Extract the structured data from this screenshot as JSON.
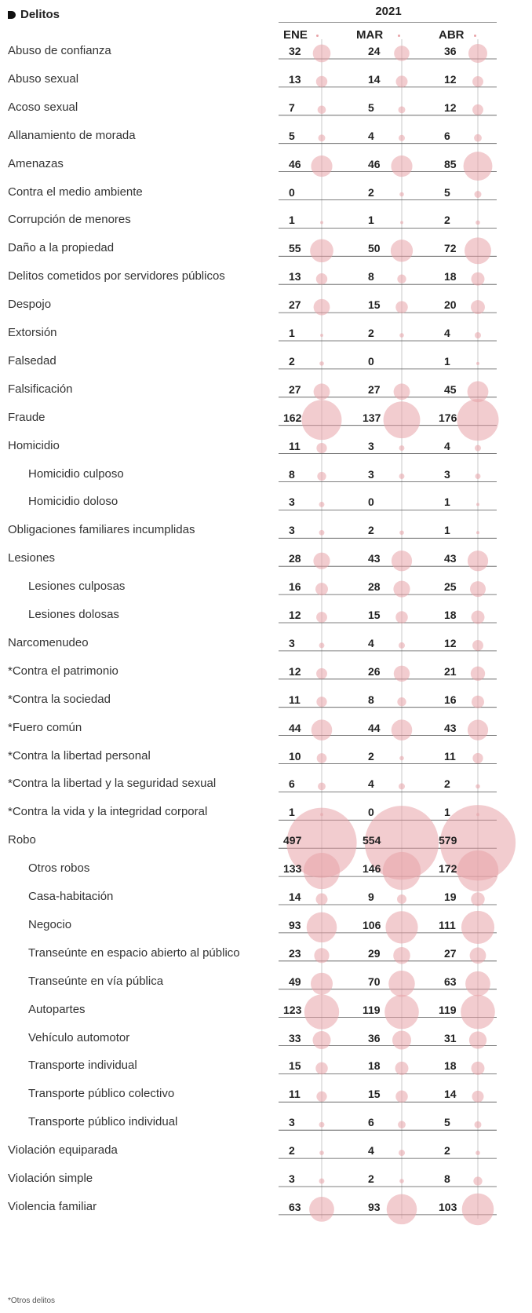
{
  "legend": {
    "label": "Delitos"
  },
  "chart_data": {
    "type": "table",
    "year": "2021",
    "columns": [
      "ENE",
      "MAR",
      "ABR"
    ],
    "rows": [
      {
        "label": "Abuso de confianza",
        "indent": 0,
        "values": [
          32,
          24,
          36
        ]
      },
      {
        "label": "Abuso sexual",
        "indent": 0,
        "values": [
          13,
          14,
          12
        ]
      },
      {
        "label": "Acoso sexual",
        "indent": 0,
        "values": [
          7,
          5,
          12
        ]
      },
      {
        "label": "Allanamiento de morada",
        "indent": 0,
        "values": [
          5,
          4,
          6
        ]
      },
      {
        "label": "Amenazas",
        "indent": 0,
        "values": [
          46,
          46,
          85
        ]
      },
      {
        "label": "Contra el medio ambiente",
        "indent": 0,
        "values": [
          0,
          2,
          5
        ]
      },
      {
        "label": "Corrupción de menores",
        "indent": 0,
        "values": [
          1,
          1,
          2
        ]
      },
      {
        "label": "Daño a la propiedad",
        "indent": 0,
        "values": [
          55,
          50,
          72
        ]
      },
      {
        "label": "Delitos cometidos por servidores públicos",
        "indent": 0,
        "values": [
          13,
          8,
          18
        ]
      },
      {
        "label": "Despojo",
        "indent": 0,
        "values": [
          27,
          15,
          20
        ]
      },
      {
        "label": "Extorsión",
        "indent": 0,
        "values": [
          1,
          2,
          4
        ]
      },
      {
        "label": "Falsedad",
        "indent": 0,
        "values": [
          2,
          0,
          1
        ]
      },
      {
        "label": "Falsificación",
        "indent": 0,
        "values": [
          27,
          27,
          45
        ]
      },
      {
        "label": "Fraude",
        "indent": 0,
        "values": [
          162,
          137,
          176
        ]
      },
      {
        "label": "Homicidio",
        "indent": 0,
        "values": [
          11,
          3,
          4
        ]
      },
      {
        "label": "Homicidio culposo",
        "indent": 1,
        "values": [
          8,
          3,
          3
        ]
      },
      {
        "label": "Homicidio doloso",
        "indent": 1,
        "values": [
          3,
          0,
          1
        ]
      },
      {
        "label": "Obligaciones familiares incumplidas",
        "indent": 0,
        "values": [
          3,
          2,
          1
        ]
      },
      {
        "label": "Lesiones",
        "indent": 0,
        "values": [
          28,
          43,
          43
        ]
      },
      {
        "label": "Lesiones culposas",
        "indent": 1,
        "values": [
          16,
          28,
          25
        ]
      },
      {
        "label": "Lesiones dolosas",
        "indent": 1,
        "values": [
          12,
          15,
          18
        ]
      },
      {
        "label": "Narcomenudeo",
        "indent": 0,
        "values": [
          3,
          4,
          12
        ]
      },
      {
        "label": "*Contra el patrimonio",
        "indent": 0,
        "values": [
          12,
          26,
          21
        ]
      },
      {
        "label": "*Contra la sociedad",
        "indent": 0,
        "values": [
          11,
          8,
          16
        ]
      },
      {
        "label": "*Fuero común",
        "indent": 0,
        "values": [
          44,
          44,
          43
        ]
      },
      {
        "label": "*Contra la libertad personal",
        "indent": 0,
        "values": [
          10,
          2,
          11
        ]
      },
      {
        "label": "*Contra la libertad y la seguridad sexual",
        "indent": 0,
        "values": [
          6,
          4,
          2
        ]
      },
      {
        "label": "*Contra la vida y la integridad corporal",
        "indent": 0,
        "values": [
          1,
          0,
          1
        ]
      },
      {
        "label": "Robo",
        "indent": 0,
        "values": [
          497,
          554,
          579
        ]
      },
      {
        "label": "Otros robos",
        "indent": 1,
        "values": [
          133,
          146,
          172
        ]
      },
      {
        "label": "Casa-habitación",
        "indent": 1,
        "values": [
          14,
          9,
          19
        ]
      },
      {
        "label": "Negocio",
        "indent": 1,
        "values": [
          93,
          106,
          111
        ]
      },
      {
        "label": "Transeúnte en espacio abierto al público",
        "indent": 1,
        "values": [
          23,
          29,
          27
        ]
      },
      {
        "label": "Transeúnte en vía pública",
        "indent": 1,
        "values": [
          49,
          70,
          63
        ]
      },
      {
        "label": "Autopartes",
        "indent": 1,
        "values": [
          123,
          119,
          119
        ]
      },
      {
        "label": "Vehículo automotor",
        "indent": 1,
        "values": [
          33,
          36,
          31
        ]
      },
      {
        "label": "Transporte individual",
        "indent": 1,
        "values": [
          15,
          18,
          18
        ]
      },
      {
        "label": "Transporte público colectivo",
        "indent": 1,
        "values": [
          11,
          15,
          14
        ]
      },
      {
        "label": "Transporte público individual",
        "indent": 1,
        "values": [
          3,
          6,
          5
        ]
      },
      {
        "label": "Violación equiparada",
        "indent": 0,
        "values": [
          2,
          4,
          2
        ]
      },
      {
        "label": "Violación simple",
        "indent": 0,
        "values": [
          3,
          2,
          8
        ]
      },
      {
        "label": "Violencia familiar",
        "indent": 0,
        "values": [
          63,
          93,
          103
        ]
      }
    ],
    "encoding": "bubble area proportional to value",
    "bubble_color": "#e8a3a8"
  },
  "footnote": "*Otros delitos"
}
